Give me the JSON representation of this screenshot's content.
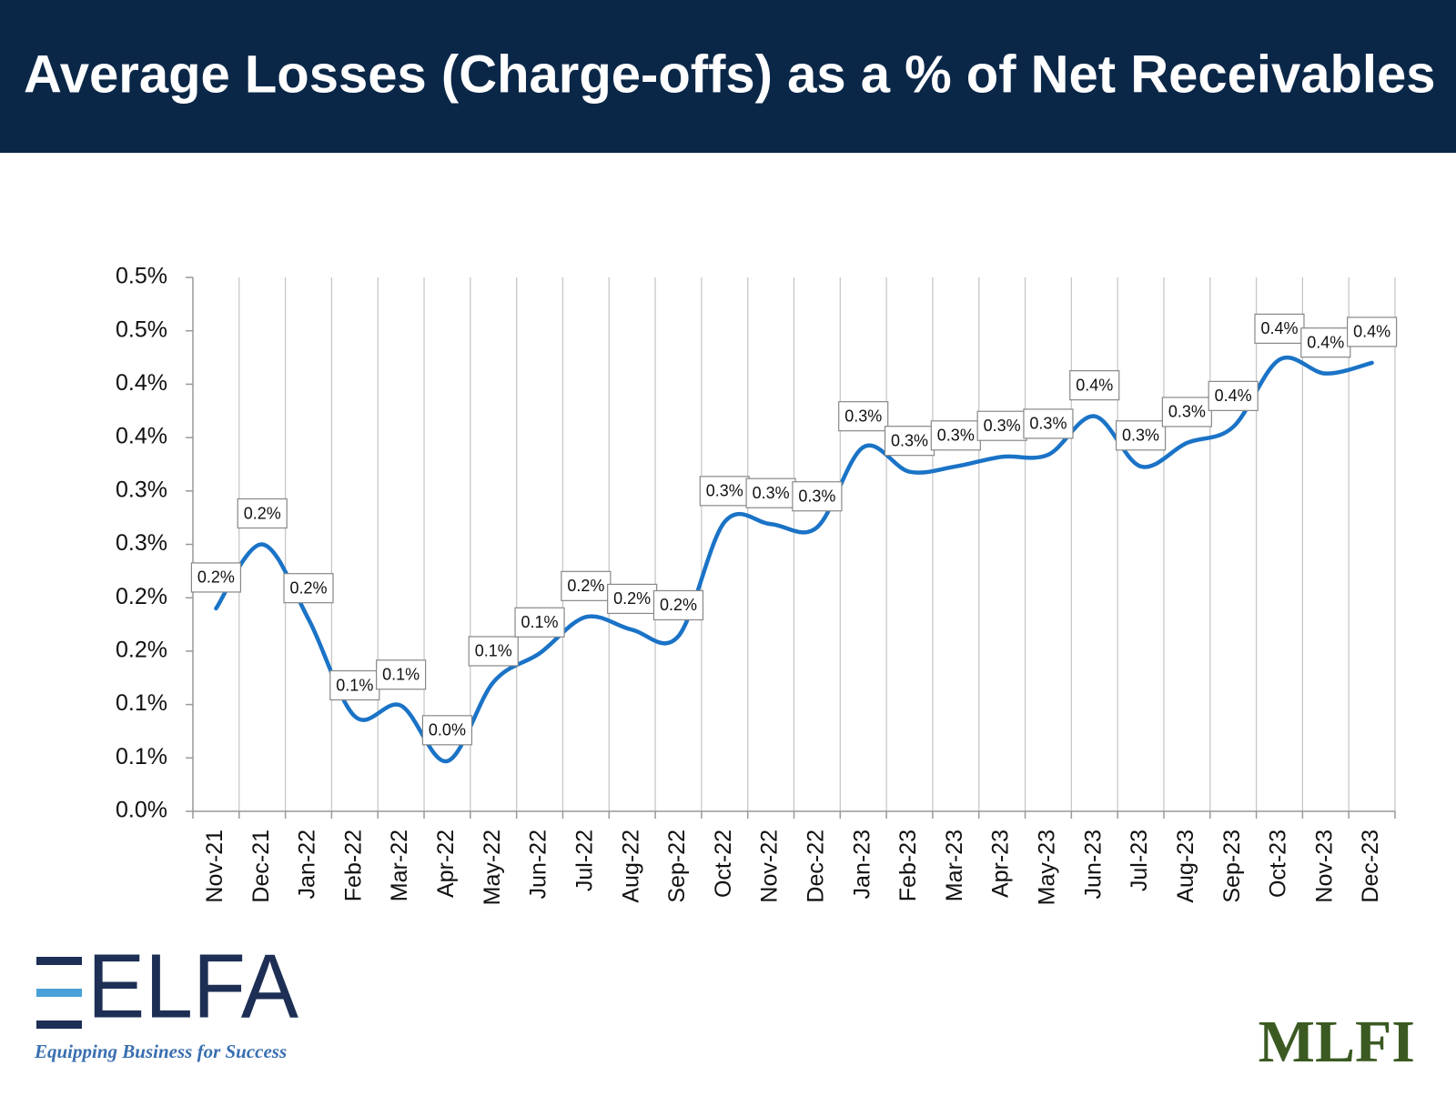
{
  "chart_data": {
    "type": "line",
    "title": "Average Losses (Charge-offs) as a % of Net Receivables",
    "categories": [
      "Nov-21",
      "Dec-21",
      "Jan-22",
      "Feb-22",
      "Mar-22",
      "Apr-22",
      "May-22",
      "Jun-22",
      "Jul-22",
      "Aug-22",
      "Sep-22",
      "Oct-22",
      "Nov-22",
      "Dec-22",
      "Jan-23",
      "Feb-23",
      "Mar-23",
      "Apr-23",
      "May-23",
      "Jun-23",
      "Jul-23",
      "Aug-23",
      "Sep-23",
      "Oct-23",
      "Nov-23",
      "Dec-23"
    ],
    "values": [
      0.19,
      0.25,
      0.18,
      0.089,
      0.099,
      0.047,
      0.121,
      0.148,
      0.182,
      0.17,
      0.164,
      0.271,
      0.269,
      0.266,
      0.341,
      0.318,
      0.323,
      0.332,
      0.334,
      0.37,
      0.323,
      0.345,
      0.36,
      0.423,
      0.41,
      0.42
    ],
    "value_labels": [
      "0.2%",
      "0.2%",
      "0.2%",
      "0.1%",
      "0.1%",
      "0.0%",
      "0.1%",
      "0.1%",
      "0.2%",
      "0.2%",
      "0.2%",
      "0.3%",
      "0.3%",
      "0.3%",
      "0.3%",
      "0.3%",
      "0.3%",
      "0.3%",
      "0.3%",
      "0.4%",
      "0.3%",
      "0.3%",
      "0.4%",
      "0.4%",
      "0.4%",
      "0.4%"
    ],
    "color": "#1a73c6",
    "ylim": [
      0,
      0.5
    ],
    "yticks": [
      {
        "value": 0,
        "label": "0.0%"
      },
      {
        "value": 0.05,
        "label": "0.1%"
      },
      {
        "value": 0.1,
        "label": "0.1%"
      },
      {
        "value": 0.15,
        "label": "0.2%"
      },
      {
        "value": 0.2,
        "label": "0.2%"
      },
      {
        "value": 0.25,
        "label": "0.3%"
      },
      {
        "value": 0.3,
        "label": "0.3%"
      },
      {
        "value": 0.35,
        "label": "0.4%"
      },
      {
        "value": 0.4,
        "label": "0.4%"
      },
      {
        "value": 0.45,
        "label": "0.5%"
      },
      {
        "value": 0.5,
        "label": "0.5%"
      }
    ],
    "grid": true
  },
  "logos": {
    "left": "ELFA",
    "left_tagline": "Equipping Business for Success",
    "right": "MLFI"
  }
}
